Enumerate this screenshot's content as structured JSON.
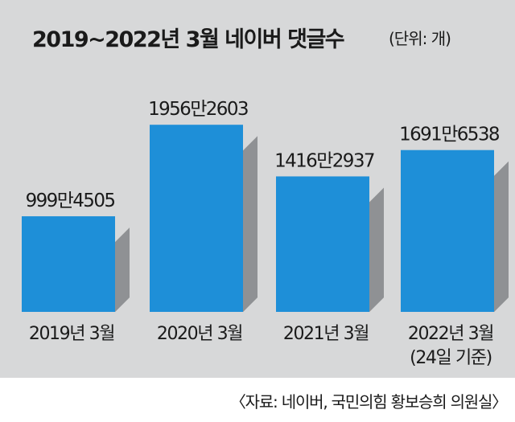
{
  "chart_data": {
    "type": "bar",
    "title": "2019~2022년 3월 네이버 댓글수",
    "unit": "(단위: 개)",
    "categories": [
      "2019년 3월",
      "2020년 3월",
      "2021년 3월",
      "2022년 3월"
    ],
    "category_notes": [
      "",
      "",
      "",
      "(24일 기준)"
    ],
    "values": [
      9994505,
      19562603,
      14162937,
      16916538
    ],
    "value_labels": [
      "999만4505",
      "1956만2603",
      "1416만2937",
      "1691만6538"
    ],
    "ylim": [
      0,
      20000000
    ],
    "grid": false,
    "source": "〈자료: 네이버, 국민의힘 황보승희 의원실〉"
  },
  "colors": {
    "panel": "#d7d8d9",
    "bar": "#1e8fd8",
    "bar_shadow": "#8f9194",
    "text": "#1a1a1a"
  }
}
